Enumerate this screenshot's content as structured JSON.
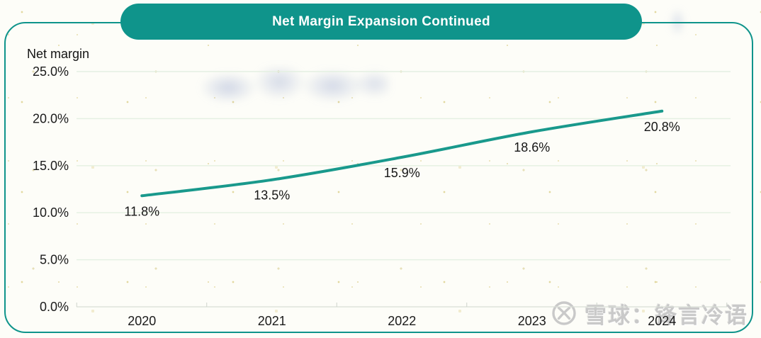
{
  "header": {
    "title": "Net Margin Expansion Continued"
  },
  "watermark": {
    "text": "雪球：锋言冷语",
    "logo": "xueqiu-logo"
  },
  "colors": {
    "accent_teal": "#0f948b",
    "line_teal": "#19998c",
    "grid_green": "#e4f0e2",
    "axis_gray": "#d9ded6",
    "label_dark": "#1b1b1b",
    "watermark_gray": "#c9c9c9",
    "title_text": "#ffffff"
  },
  "chart_data": {
    "type": "line",
    "title": "Net Margin Expansion Continued",
    "ylabel": "Net margin",
    "xlabel": "",
    "categories": [
      "2020",
      "2021",
      "2022",
      "2023",
      "2024"
    ],
    "values": [
      11.8,
      13.5,
      15.9,
      18.6,
      20.8
    ],
    "point_labels": [
      "11.8%",
      "13.5%",
      "15.9%",
      "18.6%",
      "20.8%"
    ],
    "ylim": [
      0,
      25
    ],
    "y_tick_values": [
      25,
      20,
      15,
      10,
      5,
      0
    ],
    "y_tick_labels": [
      "25.0%",
      "20.0%",
      "15.0%",
      "10.0%",
      "5.0%",
      "0.0%"
    ],
    "grid": true,
    "legend": "none",
    "line_color": "#19998c"
  }
}
